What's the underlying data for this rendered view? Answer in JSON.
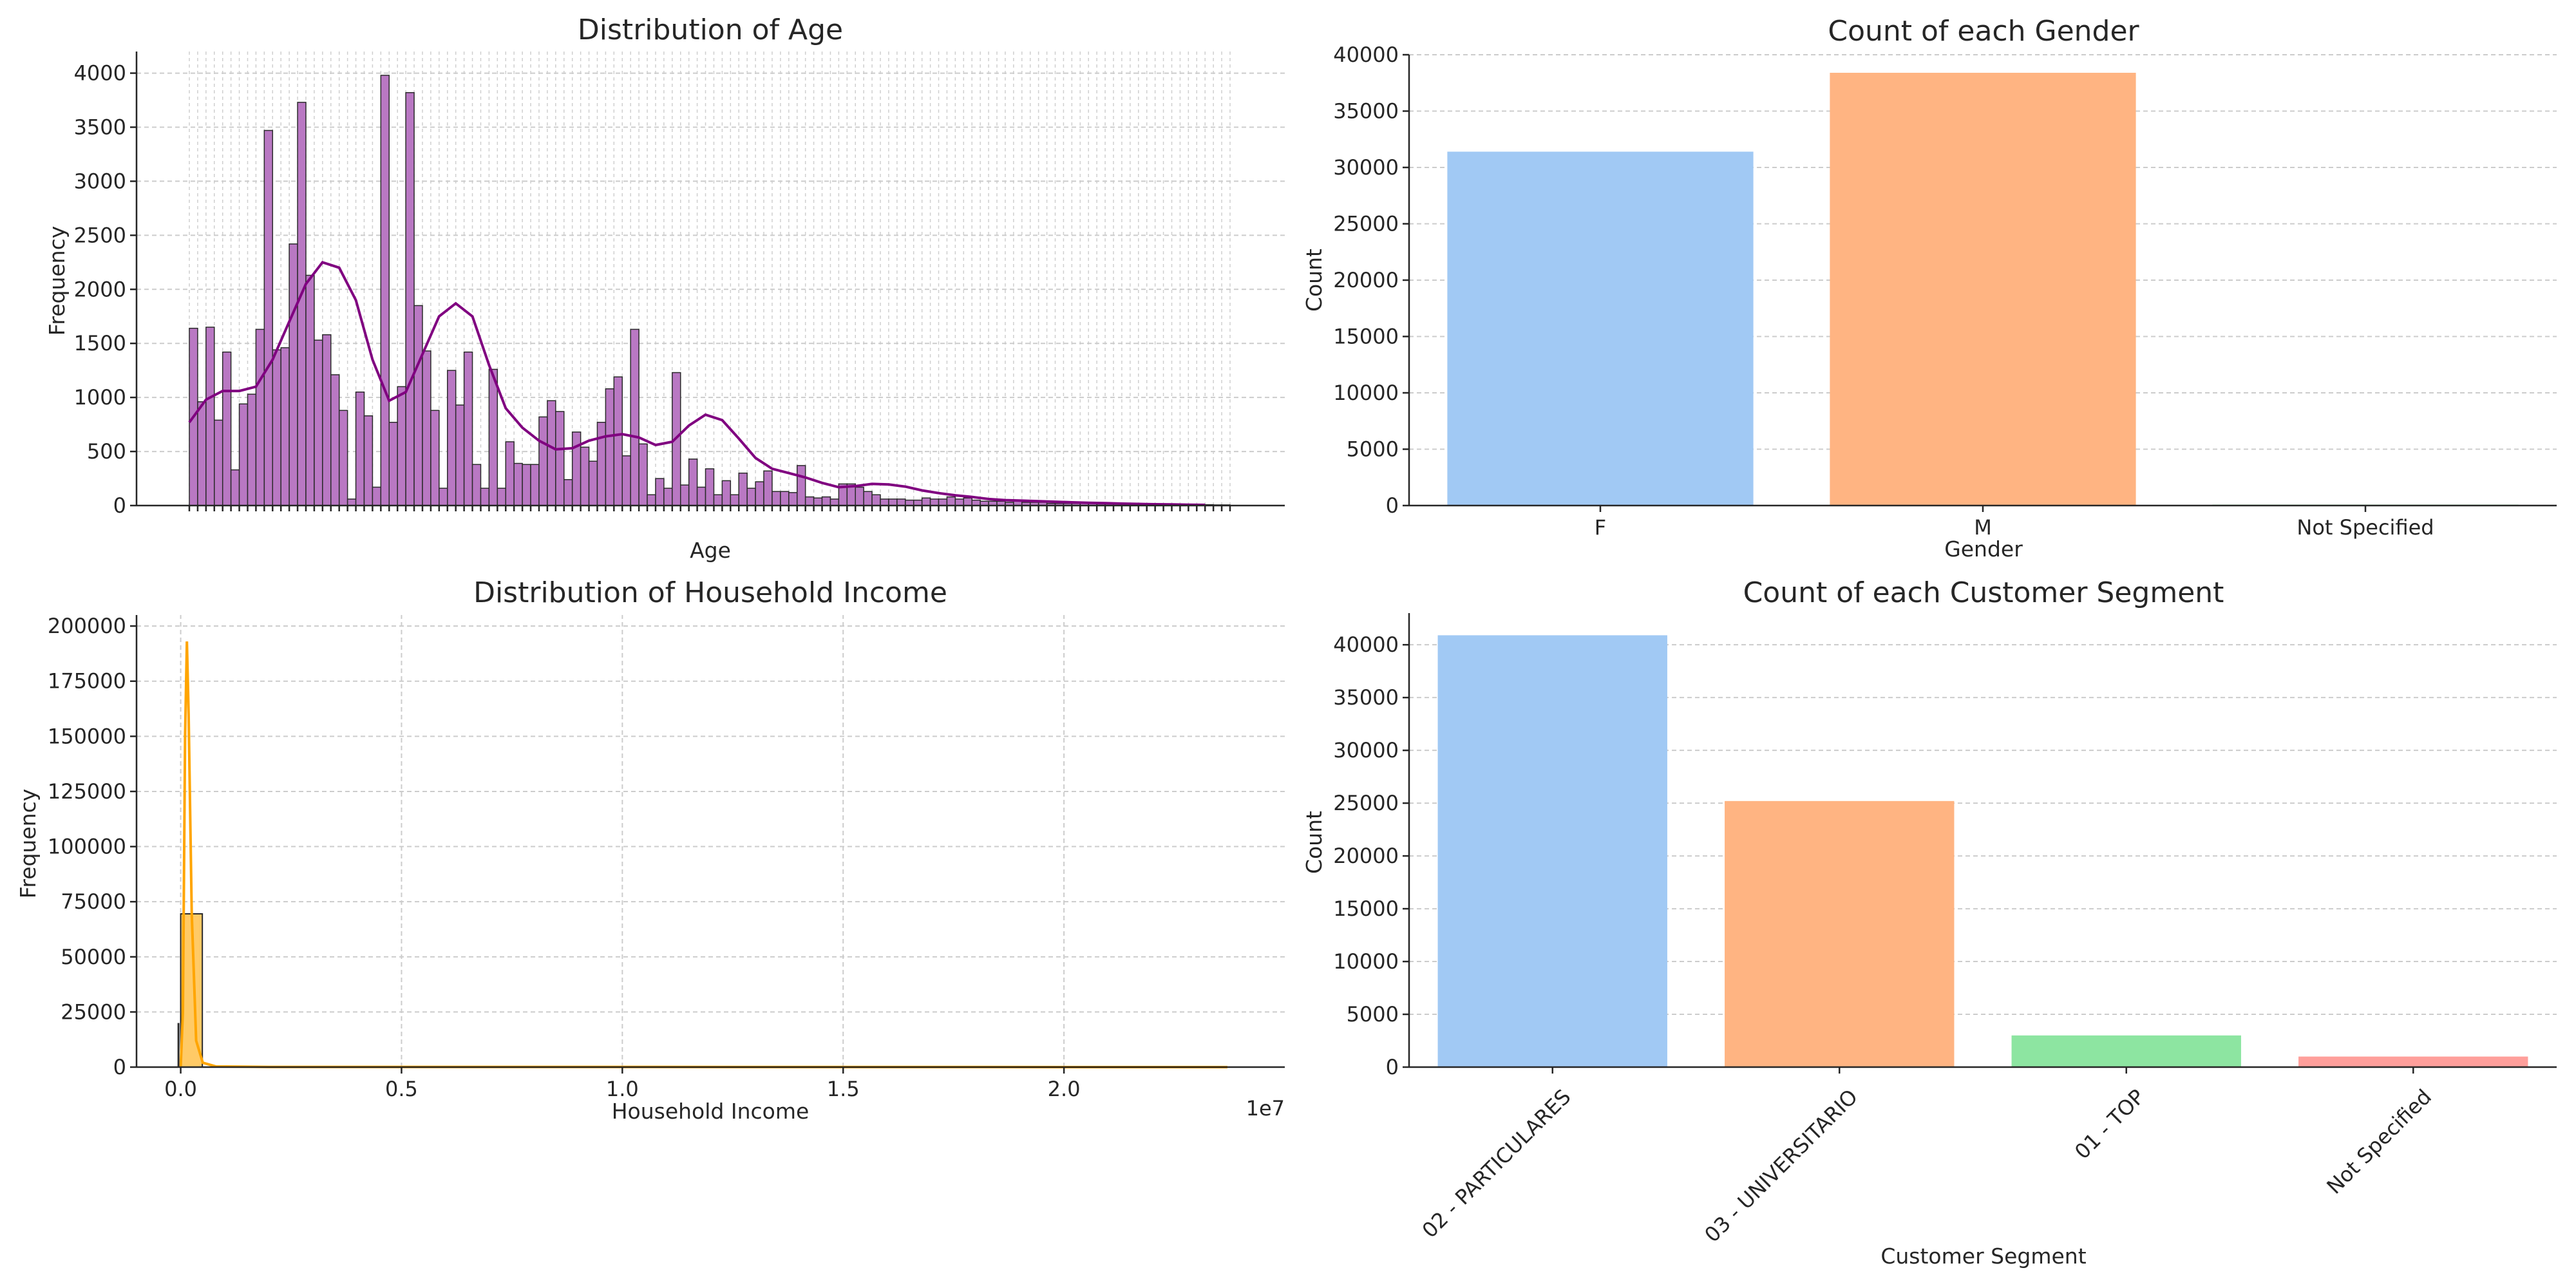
{
  "chart_data": [
    {
      "type": "bar",
      "title": "Distribution of Age",
      "xlabel": "Age",
      "ylabel": "Frequency",
      "ylim": [
        0,
        4200
      ],
      "yticks": [
        0,
        500,
        1000,
        1500,
        2000,
        2500,
        3000,
        3500,
        4000
      ],
      "xlim": [
        0,
        123
      ],
      "x_tick_labels_note": "tick labels overlap and are unreadable",
      "bar_color": "#b978c3",
      "kde_color": "#800080",
      "values": [
        1640,
        960,
        1650,
        790,
        1420,
        330,
        940,
        1030,
        1630,
        3470,
        1440,
        1460,
        2420,
        3730,
        2130,
        1530,
        1580,
        1210,
        880,
        60,
        1050,
        830,
        170,
        3980,
        770,
        1100,
        3820,
        1850,
        1430,
        880,
        160,
        1250,
        930,
        1420,
        380,
        160,
        1260,
        160,
        590,
        390,
        380,
        380,
        820,
        970,
        870,
        240,
        680,
        540,
        410,
        770,
        1080,
        1190,
        460,
        1630,
        570,
        100,
        250,
        160,
        1230,
        190,
        430,
        170,
        340,
        100,
        230,
        100,
        300,
        160,
        220,
        320,
        130,
        130,
        120,
        370,
        80,
        70,
        80,
        60,
        200,
        200,
        170,
        130,
        100,
        60,
        60,
        60,
        50,
        50,
        70,
        60,
        60,
        80,
        60,
        70,
        50,
        40,
        40,
        40,
        30,
        40,
        30,
        30,
        30,
        20,
        20,
        20,
        20,
        20,
        20,
        15,
        15,
        15,
        15,
        10,
        10,
        10,
        10,
        10,
        10,
        8,
        8,
        8,
        8,
        6,
        6
      ],
      "kde": [
        [
          0,
          770
        ],
        [
          2,
          980
        ],
        [
          4,
          1060
        ],
        [
          6,
          1060
        ],
        [
          8,
          1100
        ],
        [
          10,
          1350
        ],
        [
          12,
          1700
        ],
        [
          14,
          2050
        ],
        [
          16,
          2250
        ],
        [
          18,
          2200
        ],
        [
          20,
          1900
        ],
        [
          22,
          1350
        ],
        [
          24,
          970
        ],
        [
          26,
          1050
        ],
        [
          28,
          1400
        ],
        [
          30,
          1750
        ],
        [
          32,
          1870
        ],
        [
          34,
          1750
        ],
        [
          36,
          1300
        ],
        [
          38,
          900
        ],
        [
          40,
          720
        ],
        [
          42,
          600
        ],
        [
          44,
          520
        ],
        [
          46,
          530
        ],
        [
          48,
          600
        ],
        [
          50,
          640
        ],
        [
          52,
          660
        ],
        [
          54,
          630
        ],
        [
          56,
          560
        ],
        [
          58,
          590
        ],
        [
          60,
          740
        ],
        [
          62,
          840
        ],
        [
          64,
          790
        ],
        [
          66,
          620
        ],
        [
          68,
          440
        ],
        [
          70,
          340
        ],
        [
          72,
          300
        ],
        [
          74,
          260
        ],
        [
          76,
          210
        ],
        [
          78,
          170
        ],
        [
          80,
          180
        ],
        [
          82,
          200
        ],
        [
          84,
          195
        ],
        [
          86,
          175
        ],
        [
          88,
          140
        ],
        [
          90,
          115
        ],
        [
          92,
          95
        ],
        [
          94,
          80
        ],
        [
          96,
          60
        ],
        [
          98,
          50
        ],
        [
          100,
          45
        ],
        [
          102,
          40
        ],
        [
          104,
          35
        ],
        [
          106,
          30
        ],
        [
          108,
          25
        ],
        [
          110,
          22
        ],
        [
          112,
          18
        ],
        [
          114,
          15
        ],
        [
          116,
          12
        ],
        [
          118,
          10
        ],
        [
          120,
          8
        ],
        [
          122,
          6
        ]
      ]
    },
    {
      "type": "bar",
      "title": "Count of each Gender",
      "xlabel": "Gender",
      "ylabel": "Count",
      "ylim": [
        0,
        40000
      ],
      "yticks": [
        0,
        5000,
        10000,
        15000,
        20000,
        25000,
        30000,
        35000,
        40000
      ],
      "categories": [
        "F",
        "M",
        "Not Specified"
      ],
      "values": [
        31400,
        38400,
        80
      ],
      "colors": [
        "#a1c9f4",
        "#ffb482",
        "#8de5a1"
      ]
    },
    {
      "type": "bar",
      "title": "Distribution of Household Income",
      "xlabel": "Household Income",
      "ylabel": "Frequency",
      "offset_text": "1e7",
      "xlim": [
        -0.1,
        2.5
      ],
      "xticks": [
        0.0,
        0.5,
        1.0,
        1.5,
        2.0
      ],
      "xtick_labels": [
        "0.0",
        "0.5",
        "1.0",
        "1.5",
        "2.0"
      ],
      "ylim": [
        0,
        205000
      ],
      "yticks": [
        0,
        25000,
        50000,
        75000,
        100000,
        125000,
        150000,
        175000,
        200000
      ],
      "bar_color": "#ffca66",
      "kde_color": "#ffa500",
      "bins": [
        {
          "x0": 0.0,
          "x1": 0.049,
          "value": 69500
        }
      ],
      "kde": [
        [
          0.0,
          300
        ],
        [
          0.005,
          25000
        ],
        [
          0.01,
          150000
        ],
        [
          0.014,
          193000
        ],
        [
          0.018,
          160000
        ],
        [
          0.025,
          70000
        ],
        [
          0.035,
          12000
        ],
        [
          0.05,
          2000
        ],
        [
          0.08,
          300
        ],
        [
          0.2,
          100
        ],
        [
          1.0,
          50
        ],
        [
          2.37,
          0
        ]
      ],
      "extra_marks": [
        {
          "x": -0.005,
          "y0": 0,
          "y1": 20000
        }
      ]
    },
    {
      "type": "bar",
      "title": "Count of each Customer Segment",
      "xlabel": "Customer Segment",
      "ylabel": "Count",
      "ylim": [
        0,
        43000
      ],
      "yticks": [
        0,
        5000,
        10000,
        15000,
        20000,
        25000,
        30000,
        35000,
        40000
      ],
      "categories": [
        "02 - PARTICULARES",
        "03 - UNIVERSITARIO",
        "01 - TOP",
        "Not Specified"
      ],
      "values": [
        40900,
        25200,
        3000,
        1000
      ],
      "colors": [
        "#a1c9f4",
        "#ffb482",
        "#8de5a1",
        "#ff9f9b"
      ]
    }
  ]
}
